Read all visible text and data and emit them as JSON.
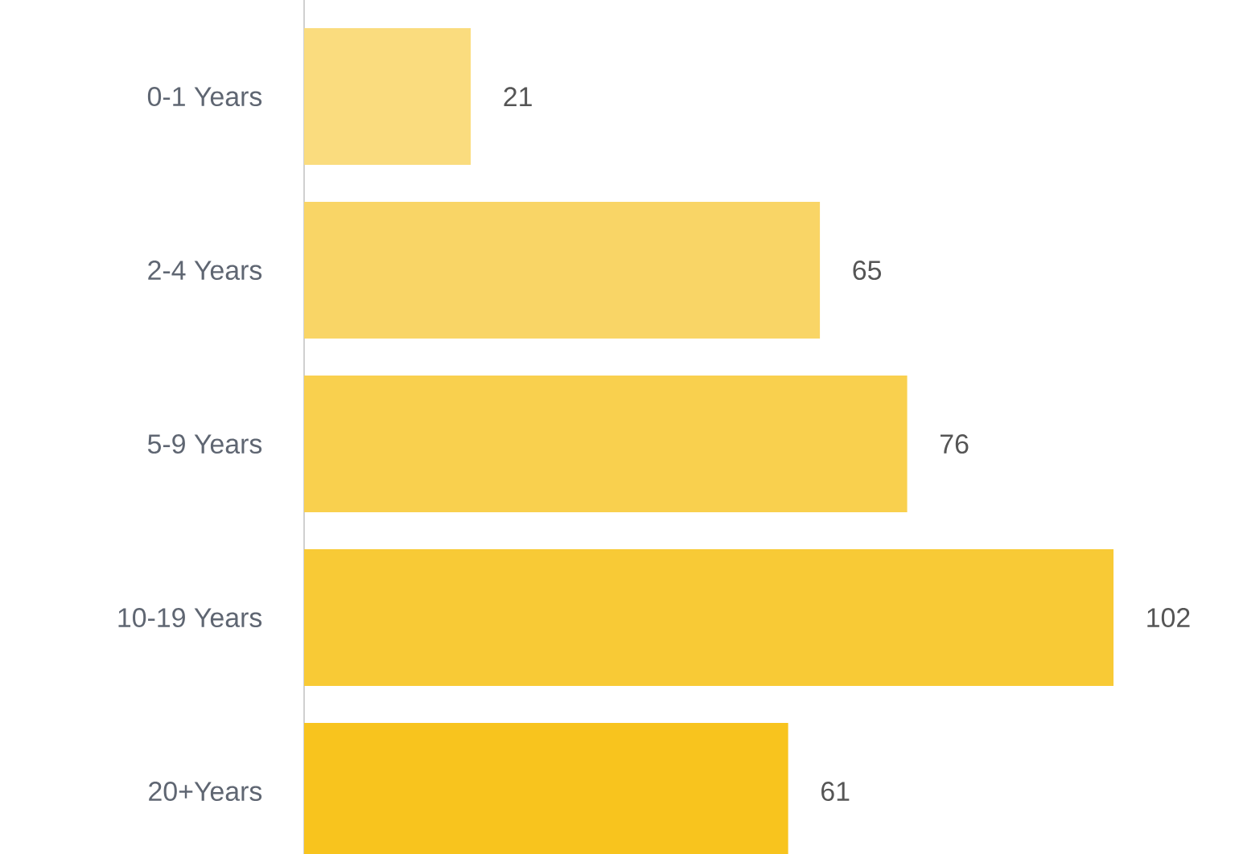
{
  "chart_data": {
    "type": "bar",
    "orientation": "horizontal",
    "data_labels": true,
    "categories": [
      "0-1 Years",
      "2-4 Years",
      "5-9 Years",
      "10-19 Years",
      "20+Years"
    ],
    "values": [
      21,
      65,
      76,
      102,
      61
    ],
    "colors": [
      "#fadc7e",
      "#f9d566",
      "#f9d04e",
      "#f8ca36",
      "#f8c41e"
    ]
  }
}
